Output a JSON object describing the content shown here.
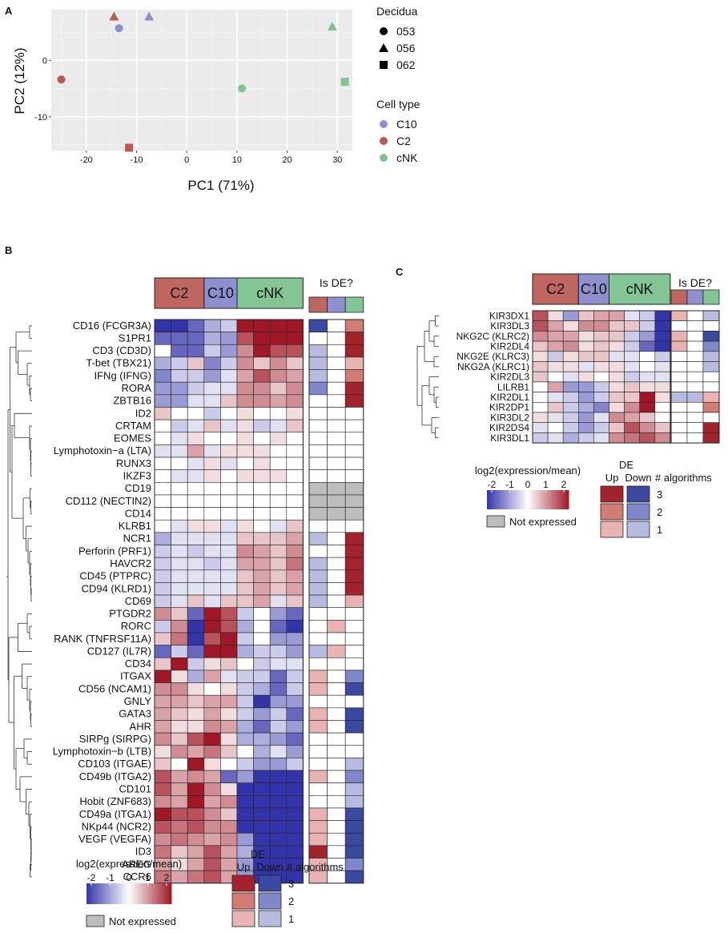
{
  "panel_labels": {
    "a": "A",
    "b": "B",
    "c": "C"
  },
  "chart_data": [
    {
      "type": "scatter",
      "panel": "A",
      "xlabel": "PC1 (71%)",
      "ylabel": "PC2 (12%)",
      "xlim": [
        -27,
        33
      ],
      "ylim": [
        -16,
        9
      ],
      "xticks": [
        -20,
        -10,
        0,
        10,
        20,
        30
      ],
      "yticks": [
        -10,
        0
      ],
      "grid": true,
      "legend_shape_title": "Decidua",
      "legend_color_title": "Cell type",
      "shapes": [
        {
          "label": "053",
          "shape": "circle"
        },
        {
          "label": "056",
          "shape": "triangle"
        },
        {
          "label": "062",
          "shape": "square"
        }
      ],
      "cell_types": [
        {
          "label": "C10",
          "color": "#8f8fd0"
        },
        {
          "label": "C2",
          "color": "#b85a56"
        },
        {
          "label": "cNK",
          "color": "#7fc38f"
        }
      ],
      "points": [
        {
          "x": -14.5,
          "y": 7.8,
          "shape": "triangle",
          "cell": "C2"
        },
        {
          "x": -13.5,
          "y": 5.7,
          "shape": "circle",
          "cell": "C10"
        },
        {
          "x": -7.5,
          "y": 7.8,
          "shape": "triangle",
          "cell": "C10"
        },
        {
          "x": -25,
          "y": -3.4,
          "shape": "circle",
          "cell": "C2"
        },
        {
          "x": -11.5,
          "y": -15.5,
          "shape": "square",
          "cell": "C2"
        },
        {
          "x": 11,
          "y": -5,
          "shape": "circle",
          "cell": "cNK"
        },
        {
          "x": 29,
          "y": 6,
          "shape": "triangle",
          "cell": "cNK"
        },
        {
          "x": 31.5,
          "y": -3.8,
          "shape": "square",
          "cell": "cNK"
        }
      ]
    },
    {
      "type": "heatmap",
      "panel": "B",
      "groups": [
        {
          "label": "C2",
          "color": "#c06661"
        },
        {
          "label": "C10",
          "color": "#8f8fd0"
        },
        {
          "label": "cNK",
          "color": "#84c596"
        }
      ],
      "de_title": "Is DE?",
      "colorbar_title": "log2(expression/mean)",
      "colorbar_ticks": [
        "-2",
        "-1",
        "0",
        "1",
        "2"
      ],
      "not_expressed_label": "Not expressed",
      "de_legend_title": "DE",
      "de_up_label": "Up",
      "de_down_label": "Down",
      "de_count_label": "# algorithms",
      "de_levels": [
        "3",
        "2",
        "1"
      ],
      "genes": [
        "CD16 (FCGR3A)",
        "S1PR1",
        "CD3 (CD3D)",
        "T-bet (TBX21)",
        "IFNg (IFNG)",
        "RORA",
        "ZBTB16",
        "ID2",
        "CRTAM",
        "EOMES",
        "Lymphotoxin−a (LTA)",
        "RUNX3",
        "IKZF3",
        "CD19",
        "CD112 (NECTIN2)",
        "CD14",
        "KLRB1",
        "NCR1",
        "Perforin (PRF1)",
        "HAVCR2",
        "CD45 (PTPRC)",
        "CD94 (KLRD1)",
        "CD69",
        "PTGDR2",
        "RORC",
        "RANK (TNFRSF11A)",
        "CD127 (IL7R)",
        "CD34",
        "ITGAX",
        "CD56 (NCAM1)",
        "GNLY",
        "GATA3",
        "AHR",
        "SIRPg (SIRPG)",
        "Lymphotoxin−b (LTB)",
        "CD103 (ITGAE)",
        "CD49b (ITGA2)",
        "CD101",
        "Hobit (ZNF683)",
        "CD49a (ITGA1)",
        "NKp44 (NCR2)",
        "VEGF (VEGFA)",
        "ID3",
        "AREG",
        "CCR6"
      ],
      "values": [
        [
          -2,
          -2,
          -1.5,
          -0.8,
          -0.5,
          2,
          2,
          2,
          2
        ],
        [
          -1.5,
          -1.5,
          -1.5,
          -0.8,
          -1,
          1.5,
          2,
          2,
          2
        ],
        [
          0,
          -1.5,
          -1.5,
          -0.5,
          -1,
          1,
          2,
          1.5,
          1.5
        ],
        [
          -0.8,
          -0.5,
          0.5,
          -1.2,
          -0.5,
          1,
          0.5,
          1,
          0.5
        ],
        [
          -1.2,
          -0.5,
          -0.5,
          -1,
          -0.3,
          0.8,
          1.5,
          1,
          0.8
        ],
        [
          -1,
          -1,
          -0.5,
          -0.3,
          -0.3,
          1,
          1,
          0.5,
          1
        ],
        [
          -1,
          -1,
          -0.3,
          -0.3,
          0.5,
          1,
          1,
          0.8,
          1
        ],
        [
          0.5,
          0,
          0,
          -0.5,
          0,
          0.3,
          0,
          0,
          0.3
        ],
        [
          0,
          -0.5,
          -0.3,
          0.5,
          -0.3,
          0.3,
          -0.5,
          -0.3,
          0.5
        ],
        [
          0,
          -0.3,
          0.3,
          0,
          0,
          0.3,
          0,
          0.3,
          0
        ],
        [
          -0.3,
          -0.3,
          0.8,
          -0.3,
          0.3,
          0.3,
          0.3,
          0,
          0
        ],
        [
          0,
          0,
          -0.3,
          0.3,
          -0.3,
          0,
          0.3,
          0,
          0
        ],
        [
          0,
          -0.3,
          -0.3,
          0.3,
          0,
          0.3,
          0.3,
          0.3,
          0
        ],
        [
          0,
          0,
          0,
          0,
          0,
          0,
          0,
          0,
          0
        ],
        [
          0,
          0,
          0,
          0,
          0,
          0,
          0,
          0,
          0
        ],
        [
          0,
          0,
          0,
          0,
          0,
          0,
          0,
          0,
          0
        ],
        [
          0,
          -0.3,
          0.3,
          0.3,
          -0.3,
          0.3,
          0,
          -0.3,
          0.5
        ],
        [
          -0.8,
          -0.3,
          -0.3,
          -0.3,
          -0.3,
          0.5,
          0.5,
          0.5,
          0.8
        ],
        [
          -0.5,
          -0.3,
          -0.5,
          -0.3,
          -0.3,
          1,
          0.8,
          0.5,
          1
        ],
        [
          -0.5,
          -0.3,
          -0.3,
          -0.5,
          -0.3,
          0.8,
          0.8,
          0.5,
          1.2
        ],
        [
          -0.5,
          -0.3,
          -0.3,
          -0.3,
          -0.3,
          0.5,
          0.8,
          0.5,
          0.8
        ],
        [
          -0.5,
          -0.3,
          -0.3,
          -0.3,
          -0.3,
          0.5,
          0.8,
          0.5,
          0.8
        ],
        [
          -0.5,
          -0.3,
          0.5,
          -0.3,
          0.5,
          0.5,
          0.8,
          -0.3,
          0.5
        ],
        [
          1,
          0.5,
          -1.5,
          2,
          1.5,
          -0.5,
          0,
          -1,
          -1.5
        ],
        [
          -0.5,
          1,
          -2,
          2,
          1.5,
          -0.8,
          0,
          -1.5,
          -2
        ],
        [
          0.5,
          1.2,
          -2,
          1.5,
          2,
          -0.5,
          0,
          -1,
          -1
        ],
        [
          -1.5,
          -0.5,
          -1.5,
          2,
          2,
          -0.8,
          -0.5,
          -0.5,
          -1
        ],
        [
          0.5,
          2,
          -0.5,
          0.3,
          0.5,
          0,
          -0.5,
          -0.3,
          -0.3
        ],
        [
          2,
          0.3,
          -0.8,
          0.8,
          -0.3,
          -0.5,
          -0.5,
          -1.5,
          -0.5
        ],
        [
          1,
          1,
          0.3,
          0,
          0.3,
          -0.5,
          -0.8,
          -1.5,
          -0.5
        ],
        [
          0.8,
          0.8,
          0.5,
          0.8,
          0.8,
          -0.5,
          -2,
          -1,
          -1
        ],
        [
          0.8,
          0.5,
          0.3,
          0.8,
          0.3,
          -0.5,
          -1,
          -0.5,
          -1.5
        ],
        [
          0.8,
          0.3,
          0.3,
          1,
          0.8,
          -0.8,
          -1.5,
          -0.5,
          -1
        ],
        [
          1,
          0.5,
          1.5,
          2,
          0.3,
          -0.8,
          -0.8,
          -1,
          -1.5
        ],
        [
          0.3,
          1,
          0.8,
          1.2,
          0.5,
          0,
          -0.8,
          -0.3,
          -1
        ],
        [
          0.5,
          0,
          2,
          0.3,
          0,
          -0.5,
          -1,
          -1,
          -0.5
        ],
        [
          1.5,
          0.8,
          1,
          0.8,
          -1.5,
          -1,
          -2,
          -2,
          -2
        ],
        [
          1.5,
          0.8,
          2,
          1,
          0.3,
          -2,
          -2,
          -2,
          -2
        ],
        [
          1,
          0.8,
          2,
          0.8,
          1,
          -2,
          -2,
          -2,
          -2
        ],
        [
          2,
          1.5,
          1.5,
          1,
          0.5,
          -2,
          -2,
          -2,
          -2
        ],
        [
          1.5,
          1.2,
          1.5,
          1,
          1,
          -2,
          -2,
          -2,
          -2
        ],
        [
          1,
          1.2,
          1,
          0.8,
          1,
          -1,
          -2,
          -2,
          -2
        ],
        [
          1.2,
          0.5,
          0.8,
          1.5,
          0.8,
          -0.8,
          -2,
          -2,
          -2
        ],
        [
          0.8,
          0.3,
          0.8,
          1.5,
          0.8,
          -1,
          -2,
          -2,
          -2
        ],
        [
          1.2,
          0.8,
          1.2,
          1.5,
          0.8,
          -1,
          -2,
          -2,
          -2
        ]
      ],
      "not_expressed_rows": [
        "CD19",
        "CD112 (NECTIN2)",
        "CD14"
      ],
      "de": [
        [
          -3,
          0,
          2
        ],
        [
          0,
          0,
          3
        ],
        [
          -1,
          0,
          3
        ],
        [
          -1,
          0,
          1
        ],
        [
          -1,
          0,
          2
        ],
        [
          -2,
          0,
          3
        ],
        [
          0,
          0,
          3
        ],
        [
          0,
          0,
          0
        ],
        [
          0,
          0,
          0
        ],
        [
          0,
          0,
          0
        ],
        [
          0,
          0,
          0
        ],
        [
          0,
          0,
          0
        ],
        [
          0,
          0,
          0
        ],
        [
          "NE",
          "NE",
          "NE"
        ],
        [
          "NE",
          "NE",
          "NE"
        ],
        [
          "NE",
          "NE",
          "NE"
        ],
        [
          0,
          0,
          0
        ],
        [
          -1,
          0,
          3
        ],
        [
          0,
          0,
          3
        ],
        [
          -1,
          0,
          3
        ],
        [
          -1,
          0,
          3
        ],
        [
          -1,
          0,
          3
        ],
        [
          -1,
          0,
          1
        ],
        [
          0,
          0,
          0
        ],
        [
          0,
          1,
          0
        ],
        [
          0,
          0,
          0
        ],
        [
          -1,
          1,
          0
        ],
        [
          0,
          0,
          0
        ],
        [
          1,
          0,
          -2
        ],
        [
          1,
          0,
          -3
        ],
        [
          0,
          0,
          0
        ],
        [
          1,
          0,
          -3
        ],
        [
          1,
          0,
          -3
        ],
        [
          0,
          0,
          0
        ],
        [
          0,
          0,
          0
        ],
        [
          0,
          0,
          -1
        ],
        [
          1,
          0,
          -2
        ],
        [
          0,
          0,
          -1
        ],
        [
          0,
          0,
          -1
        ],
        [
          1,
          0,
          -3
        ],
        [
          1,
          0,
          -3
        ],
        [
          1,
          0,
          -3
        ],
        [
          3,
          0,
          -3
        ],
        [
          1,
          0,
          -2
        ],
        [
          1,
          0,
          -3
        ]
      ]
    },
    {
      "type": "heatmap",
      "panel": "C",
      "groups": [
        {
          "label": "C2",
          "color": "#c06661"
        },
        {
          "label": "C10",
          "color": "#8f8fd0"
        },
        {
          "label": "cNK",
          "color": "#84c596"
        }
      ],
      "de_title": "Is DE?",
      "colorbar_title": "log2(expression/mean)",
      "colorbar_ticks": [
        "-2",
        "-1",
        "0",
        "1",
        "2"
      ],
      "not_expressed_label": "Not expressed",
      "de_legend_title": "DE",
      "de_up_label": "Up",
      "de_down_label": "Down",
      "de_count_label": "# algorithms",
      "de_levels": [
        "3",
        "2",
        "1"
      ],
      "genes": [
        "KIR3DX1",
        "KIR3DL3",
        "NKG2C (KLRC2)",
        "KIR2DL4",
        "NKG2E (KLRC3)",
        "NKG2A (KLRC1)",
        "KIR2DL3",
        "LILRB1",
        "KIR2DL1",
        "KIR2DP1",
        "KIR3DL2",
        "KIR2DS4",
        "KIR3DL1"
      ],
      "values": [
        [
          1.5,
          0.3,
          -1,
          0.5,
          0.8,
          0.8,
          -0.3,
          -0.5,
          -2
        ],
        [
          1.5,
          0.8,
          0.3,
          1,
          1,
          0.5,
          0.5,
          -0.5,
          -2
        ],
        [
          1,
          0.8,
          0.8,
          0.3,
          0.5,
          0.5,
          -0.5,
          -1,
          -2
        ],
        [
          0.5,
          0.8,
          1,
          0.3,
          0.5,
          0.3,
          -0.5,
          -1.5,
          -2
        ],
        [
          0.3,
          -0.5,
          0.3,
          0.5,
          0.5,
          -0.3,
          -0.3,
          0,
          -0.5
        ],
        [
          0.5,
          0.3,
          0.3,
          -0.3,
          0.3,
          0.3,
          -0.3,
          0,
          -0.3
        ],
        [
          0.5,
          0,
          -0.3,
          0.3,
          0,
          0.3,
          -0.5,
          -0.3,
          -0.3
        ],
        [
          0,
          0.8,
          -1,
          -1,
          -0.5,
          0.3,
          0.5,
          0.3,
          0.3
        ],
        [
          0,
          -0.3,
          -0.5,
          -1,
          -0.5,
          0.5,
          0.5,
          2,
          0.3
        ],
        [
          0,
          0.5,
          -0.5,
          -0.8,
          -1.2,
          0.3,
          1,
          2,
          0
        ],
        [
          0.3,
          -0.3,
          -0.5,
          -1,
          -0.3,
          1,
          0.8,
          0.5,
          0
        ],
        [
          -0.3,
          0,
          -0.5,
          -1,
          -0.5,
          0.5,
          1.5,
          1,
          0.5
        ],
        [
          -0.5,
          -0.3,
          -0.8,
          -0.5,
          -0.3,
          1,
          1.2,
          1.5,
          1
        ]
      ],
      "not_expressed_rows": [],
      "de": [
        [
          1,
          0,
          -1
        ],
        [
          0,
          0,
          0
        ],
        [
          1,
          0,
          -3
        ],
        [
          1,
          0,
          -2
        ],
        [
          0,
          0,
          -1
        ],
        [
          0,
          0,
          -1
        ],
        [
          0,
          0,
          0
        ],
        [
          0,
          0,
          0
        ],
        [
          -1,
          -1,
          1
        ],
        [
          0,
          0,
          2
        ],
        [
          0,
          0,
          0
        ],
        [
          0,
          0,
          3
        ],
        [
          0,
          0,
          3
        ]
      ]
    }
  ]
}
